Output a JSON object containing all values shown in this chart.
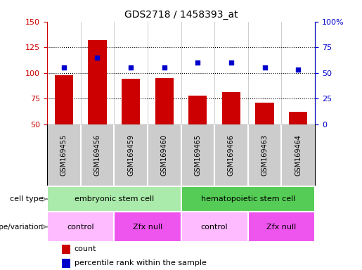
{
  "title": "GDS2718 / 1458393_at",
  "samples": [
    "GSM169455",
    "GSM169456",
    "GSM169459",
    "GSM169460",
    "GSM169465",
    "GSM169466",
    "GSM169463",
    "GSM169464"
  ],
  "counts": [
    98,
    132,
    94,
    95,
    78,
    81,
    71,
    62
  ],
  "percentiles": [
    55,
    65,
    55,
    55,
    60,
    60,
    55,
    53
  ],
  "ylim_left": [
    50,
    150
  ],
  "ylim_right": [
    0,
    100
  ],
  "yticks_left": [
    50,
    75,
    100,
    125,
    150
  ],
  "yticks_right": [
    0,
    25,
    50,
    75,
    100
  ],
  "ytick_labels_right": [
    "0",
    "25",
    "50",
    "75",
    "100%"
  ],
  "bar_color": "#cc0000",
  "dot_color": "#0000cc",
  "cell_type_label": "cell type",
  "genotype_label": "genotype/variation",
  "cell_types": [
    {
      "label": "embryonic stem cell",
      "start": 0,
      "end": 4,
      "color": "#aaeaaa"
    },
    {
      "label": "hematopoietic stem cell",
      "start": 4,
      "end": 8,
      "color": "#55cc55"
    }
  ],
  "genotypes": [
    {
      "label": "control",
      "start": 0,
      "end": 2,
      "color": "#ffbbff"
    },
    {
      "label": "Zfx null",
      "start": 2,
      "end": 4,
      "color": "#ee55ee"
    },
    {
      "label": "control",
      "start": 4,
      "end": 6,
      "color": "#ffbbff"
    },
    {
      "label": "Zfx null",
      "start": 6,
      "end": 8,
      "color": "#ee55ee"
    }
  ],
  "legend_count_color": "#cc0000",
  "legend_percentile_color": "#0000cc",
  "bg_color": "#ffffff",
  "plot_bg_color": "#ffffff",
  "tick_label_color_left": "#cc0000",
  "tick_label_color_right": "#0000cc",
  "sample_bg_color": "#cccccc",
  "grid_yticks": [
    75,
    100,
    125
  ]
}
